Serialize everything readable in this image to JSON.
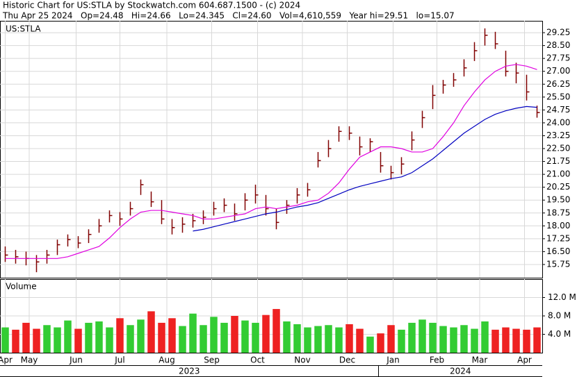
{
  "header": {
    "title": "Historic Chart for US:STLA by Stockwatch.com 604.687.1500 - (c) 2024",
    "quote": "Thu Apr 25 2024   Op=24.48   Hi=24.66   Lo=24.345   Cl=24.60   Vol=4,610,559   Year hi=29.51   lo=15.07"
  },
  "chart_data": [
    {
      "type": "ohlc",
      "ylim": [
        14.98,
        29.94
      ],
      "yticks": [
        15.75,
        {
          "value": 16.5,
          "label": "16.50"
        },
        17.25,
        {
          "value": 18,
          "label": "18.00"
        },
        18.75,
        {
          "value": 19.5,
          "label": "19.50"
        },
        20.25,
        {
          "value": 21,
          "label": "21.00"
        },
        21.75,
        {
          "value": 22.5,
          "label": "22.50"
        },
        23.25,
        {
          "value": 24,
          "label": "24.00"
        },
        24.75,
        {
          "value": 25.5,
          "label": "25.50"
        },
        26.25,
        {
          "value": 27,
          "label": "27.00"
        },
        27.75,
        {
          "value": 28.5,
          "label": "28.50"
        },
        29.25
      ],
      "xlim": [
        0,
        52
      ],
      "grid": true,
      "series": [
        {
          "name": "US:STLA",
          "color": "#800000",
          "high": [
            16.8,
            16.6,
            16.5,
            16.3,
            16.6,
            17.2,
            17.5,
            17.4,
            17.8,
            18.4,
            18.9,
            18.8,
            19.4,
            20.7,
            20.0,
            19.5,
            18.4,
            18.5,
            18.7,
            18.9,
            19.4,
            19.6,
            19.3,
            19.9,
            20.4,
            19.8,
            19.0,
            19.5,
            20.2,
            20.5,
            22.3,
            23.0,
            23.8,
            23.8,
            23.2,
            23.1,
            22.3,
            21.5,
            22.0,
            23.5,
            24.7,
            26.2,
            26.5,
            26.9,
            27.7,
            28.7,
            29.5,
            29.3,
            28.2,
            27.5,
            26.8,
            25.0
          ],
          "low": [
            15.9,
            15.8,
            15.7,
            15.3,
            15.8,
            16.3,
            16.8,
            16.7,
            17.0,
            17.6,
            18.2,
            18.0,
            18.6,
            19.8,
            19.1,
            18.1,
            17.5,
            17.6,
            17.9,
            18.1,
            18.6,
            18.8,
            18.3,
            18.9,
            19.3,
            18.6,
            17.8,
            18.7,
            19.3,
            19.7,
            21.4,
            22.0,
            22.9,
            23.0,
            22.1,
            22.3,
            21.1,
            20.7,
            21.0,
            22.4,
            23.7,
            24.8,
            25.7,
            26.1,
            26.7,
            27.6,
            28.5,
            28.3,
            26.7,
            26.3,
            25.3,
            24.3
          ],
          "close": [
            16.3,
            16.2,
            16.1,
            15.9,
            16.3,
            16.9,
            17.2,
            17.0,
            17.5,
            18.0,
            18.6,
            18.4,
            19.0,
            20.4,
            19.4,
            18.4,
            17.9,
            18.1,
            18.3,
            18.5,
            19.0,
            19.2,
            18.7,
            19.5,
            19.8,
            19.0,
            18.2,
            19.2,
            19.8,
            20.1,
            21.8,
            22.5,
            23.5,
            23.4,
            22.6,
            22.9,
            21.5,
            21.1,
            21.6,
            23.0,
            24.3,
            25.6,
            26.2,
            26.5,
            27.2,
            28.2,
            29.1,
            28.6,
            27.0,
            26.9,
            25.8,
            24.6
          ]
        },
        {
          "color": "#e000e0",
          "values": [
            16.1,
            16.1,
            16.1,
            16.1,
            16.1,
            16.1,
            16.2,
            16.4,
            16.6,
            16.8,
            17.3,
            17.9,
            18.4,
            18.8,
            18.9,
            18.9,
            18.8,
            18.7,
            18.6,
            18.4,
            18.4,
            18.5,
            18.6,
            18.7,
            19.0,
            19.1,
            19.0,
            19.1,
            19.2,
            19.4,
            19.5,
            19.9,
            20.5,
            21.3,
            22.0,
            22.3,
            22.6,
            22.6,
            22.5,
            22.3,
            22.3,
            22.5,
            23.2,
            24.0,
            25.0,
            25.8,
            26.5,
            27.0,
            27.3,
            27.4,
            27.3,
            27.1
          ]
        },
        {
          "color": "#0000c0",
          "values": [
            null,
            null,
            null,
            null,
            null,
            null,
            null,
            null,
            null,
            null,
            null,
            null,
            null,
            null,
            null,
            null,
            null,
            null,
            17.7,
            17.8,
            17.95,
            18.1,
            18.25,
            18.4,
            18.55,
            18.7,
            18.8,
            18.95,
            19.1,
            19.2,
            19.35,
            19.6,
            19.85,
            20.1,
            20.3,
            20.45,
            20.6,
            20.75,
            20.85,
            21.1,
            21.5,
            21.9,
            22.4,
            22.9,
            23.4,
            23.8,
            24.2,
            24.5,
            24.7,
            24.85,
            24.95,
            24.9
          ]
        }
      ]
    },
    {
      "type": "bar",
      "title": "Volume",
      "ylim": [
        0,
        16
      ],
      "yticks": [
        {
          "value": 4,
          "label": "4.0 M"
        },
        {
          "value": 8,
          "label": "8.0 M"
        },
        {
          "value": 12,
          "label": "12.0 M"
        }
      ],
      "xlim": [
        0,
        52
      ],
      "up_color": "#33cc33",
      "down_color": "#ee2222",
      "values": [
        5.5,
        5.0,
        6.5,
        5.2,
        6.0,
        5.5,
        7.0,
        5.2,
        6.5,
        6.8,
        5.5,
        7.5,
        6.0,
        7.2,
        9.0,
        6.5,
        7.5,
        5.8,
        8.5,
        6.0,
        7.8,
        6.5,
        8.0,
        7.0,
        6.5,
        8.2,
        9.5,
        6.8,
        6.2,
        5.5,
        5.8,
        6.0,
        5.5,
        6.2,
        5.2,
        3.5,
        4.2,
        6.0,
        5.0,
        6.5,
        7.2,
        6.5,
        5.8,
        5.5,
        6.0,
        5.2,
        6.8,
        5.0,
        5.5,
        5.2,
        5.0,
        5.5
      ],
      "xticks": [
        {
          "value": 0.5,
          "label": "Apr"
        },
        {
          "value": 2.8,
          "label": "May"
        },
        {
          "value": 7.3,
          "label": "Jun"
        },
        {
          "value": 11.5,
          "label": "Jul"
        },
        {
          "value": 16,
          "label": "Aug"
        },
        {
          "value": 20.3,
          "label": "Sep"
        },
        {
          "value": 24.7,
          "label": "Oct"
        },
        {
          "value": 29,
          "label": "Nov"
        },
        {
          "value": 33.3,
          "label": "Dec"
        },
        {
          "value": 37.7,
          "label": "Jan"
        },
        {
          "value": 41.9,
          "label": "Feb"
        },
        {
          "value": 46,
          "label": "Mar"
        },
        {
          "value": 50.3,
          "label": "Apr"
        }
      ],
      "years": [
        "2023",
        "2024"
      ]
    }
  ]
}
